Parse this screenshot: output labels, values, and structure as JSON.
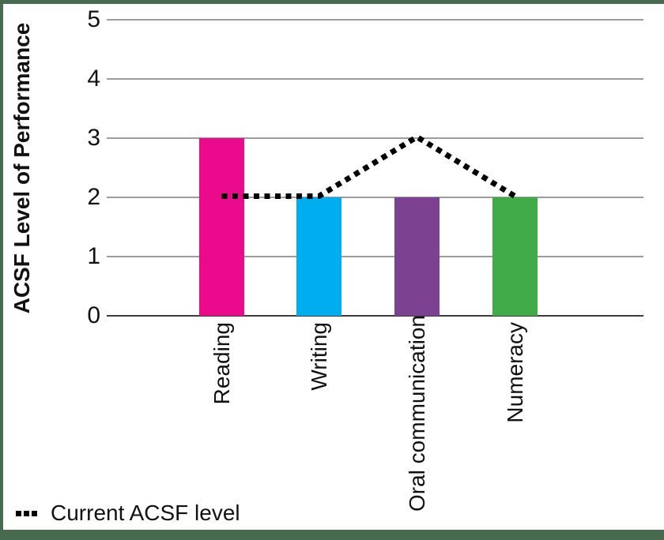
{
  "chart_data": {
    "type": "bar",
    "title": "",
    "categories": [
      "Reading",
      "Writing",
      "Oral communication",
      "Numeracy"
    ],
    "values": [
      3,
      2,
      2,
      2
    ],
    "bar_colors": [
      "#EC0A8C",
      "#00AEEF",
      "#7D4191",
      "#42AB49"
    ],
    "line_series": {
      "name": "Current ACSF level",
      "values": [
        2,
        2,
        3,
        2
      ],
      "style": "dotted",
      "color": "#000000"
    },
    "xlabel": "",
    "ylabel": "ACSF Level of Performance",
    "ylim": [
      0,
      5
    ],
    "yticks": [
      0,
      1,
      2,
      3,
      4,
      5
    ],
    "grid": true,
    "legend": {
      "position": "bottom-left",
      "entries": [
        "Current ACSF level"
      ]
    }
  },
  "colors": {
    "frame_border": "#486B50",
    "gridline": "#9C9C9C",
    "zero_axis": "#3D3D3D",
    "text": "#111111"
  },
  "legend": {
    "current_acsf_label": "Current ACSF level"
  },
  "axis": {
    "y_title": "ACSF Level of Performance"
  }
}
